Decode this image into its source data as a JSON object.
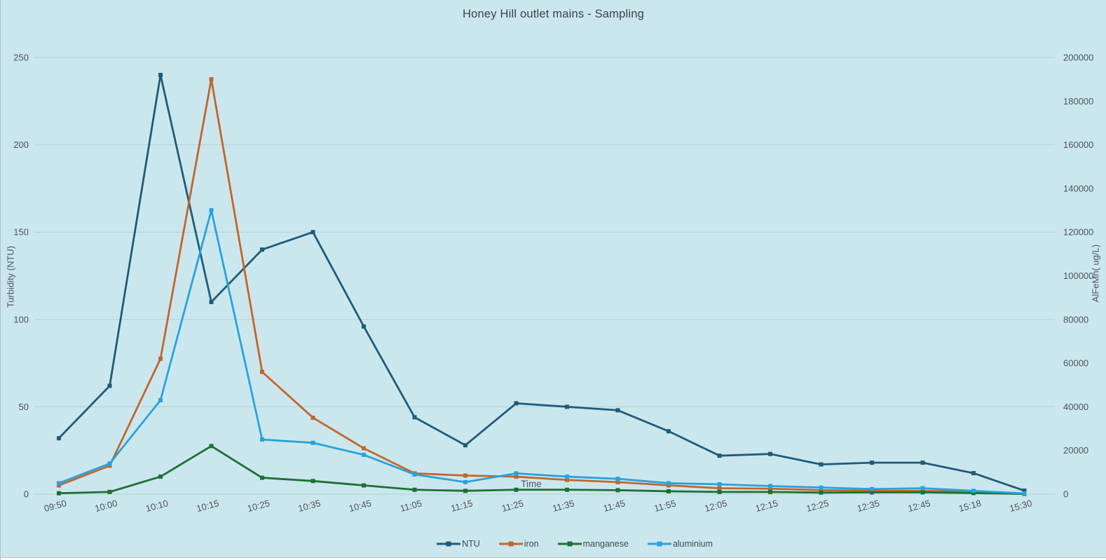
{
  "panel": {
    "background_color": "#cbe7ee",
    "gridline_color": "#b5cfd7",
    "text_color": "#4d5357"
  },
  "chart_data": {
    "type": "line",
    "title": "Honey Hill outlet mains - Sampling",
    "x_axis_title": "Time",
    "y_left": {
      "label": "Turbidity (NTU)",
      "min": 0,
      "max": 250,
      "tick_step": 50
    },
    "y_right": {
      "label": "AlFeMn( ug/L)",
      "min": 0,
      "max": 200000,
      "label_step": 20000,
      "grid_step": 40000
    },
    "grid": "horizontal",
    "legend_position": "bottom",
    "categories": [
      "09:50",
      "10:00",
      "10:10",
      "10:15",
      "10:25",
      "10:35",
      "10:45",
      "11:05",
      "11:15",
      "11:25",
      "11:35",
      "11:45",
      "11:55",
      "12:05",
      "12:15",
      "12:25",
      "12:35",
      "12:45",
      "15:18",
      "15:30"
    ],
    "series": [
      {
        "name": "NTU",
        "axis": "left",
        "color": "#1e5b7a",
        "values": [
          32,
          62,
          240,
          110,
          140,
          150,
          96,
          44,
          28,
          52,
          50,
          48,
          36,
          22,
          23,
          17,
          18,
          18,
          12,
          2
        ]
      },
      {
        "name": "iron",
        "axis": "right",
        "color": "#c2662d",
        "values": [
          4000,
          13000,
          62000,
          190000,
          56000,
          35000,
          21000,
          9500,
          8500,
          8000,
          6500,
          5500,
          4000,
          2700,
          2500,
          1800,
          1500,
          1500,
          1000,
          200
        ]
      },
      {
        "name": "manganese",
        "axis": "right",
        "color": "#1d7033",
        "values": [
          400,
          1000,
          8000,
          22000,
          7500,
          6000,
          4000,
          2000,
          1500,
          2000,
          2000,
          1800,
          1300,
          1000,
          1000,
          700,
          800,
          800,
          500,
          100
        ]
      },
      {
        "name": "aluminium",
        "axis": "right",
        "color": "#2aa2db",
        "values": [
          5000,
          14000,
          43000,
          130000,
          25000,
          23500,
          18000,
          9000,
          5500,
          9500,
          8000,
          7000,
          5000,
          4500,
          3700,
          3000,
          2300,
          2700,
          1500,
          300
        ]
      }
    ]
  }
}
